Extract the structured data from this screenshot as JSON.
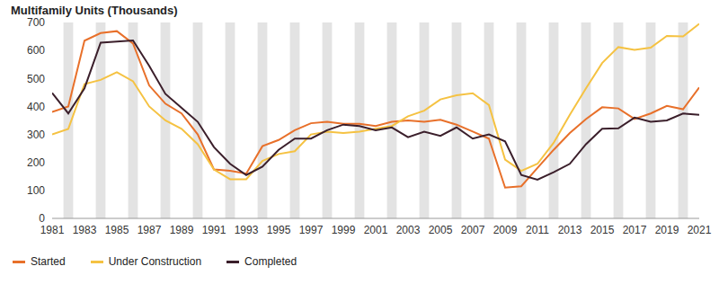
{
  "chart_data": {
    "type": "line",
    "title": "Multifamily Units (Thousands)",
    "x": [
      1981,
      1982,
      1983,
      1984,
      1985,
      1986,
      1987,
      1988,
      1989,
      1990,
      1991,
      1992,
      1993,
      1994,
      1995,
      1996,
      1997,
      1998,
      1999,
      2000,
      2001,
      2002,
      2003,
      2004,
      2005,
      2006,
      2007,
      2008,
      2009,
      2010,
      2011,
      2012,
      2013,
      2014,
      2015,
      2016,
      2017,
      2018,
      2019,
      2020,
      2021
    ],
    "series": [
      {
        "name": "Started",
        "color": "#e8702a",
        "values": [
          380,
          400,
          635,
          662,
          669,
          625,
          475,
          410,
          375,
          300,
          175,
          170,
          160,
          258,
          280,
          315,
          340,
          345,
          338,
          338,
          330,
          345,
          350,
          345,
          352,
          335,
          310,
          285,
          110,
          115,
          180,
          245,
          305,
          355,
          397,
          393,
          355,
          375,
          402,
          390,
          468
        ]
      },
      {
        "name": "Under Construction",
        "color": "#f5c242",
        "values": [
          300,
          320,
          480,
          495,
          522,
          490,
          400,
          350,
          320,
          265,
          175,
          140,
          140,
          205,
          230,
          240,
          300,
          310,
          305,
          310,
          320,
          330,
          365,
          385,
          425,
          440,
          447,
          405,
          210,
          170,
          195,
          270,
          370,
          465,
          555,
          612,
          602,
          610,
          652,
          650,
          695
        ]
      },
      {
        "name": "Completed",
        "color": "#3b1f2b",
        "values": [
          448,
          375,
          465,
          628,
          632,
          636,
          545,
          445,
          395,
          345,
          255,
          195,
          155,
          185,
          245,
          285,
          285,
          315,
          335,
          330,
          315,
          325,
          290,
          310,
          295,
          325,
          285,
          300,
          275,
          155,
          138,
          165,
          195,
          265,
          320,
          322,
          360,
          345,
          350,
          375,
          370
        ]
      }
    ],
    "xlim": [
      1981,
      2021
    ],
    "xticks": [
      1981,
      1983,
      1985,
      1987,
      1989,
      1991,
      1993,
      1995,
      1997,
      1999,
      2001,
      2003,
      2005,
      2007,
      2009,
      2011,
      2013,
      2015,
      2017,
      2019,
      2021
    ],
    "ylim": [
      0,
      700
    ],
    "yticks": [
      0,
      100,
      200,
      300,
      400,
      500,
      600,
      700
    ],
    "grid": false,
    "legend": "bottom"
  }
}
